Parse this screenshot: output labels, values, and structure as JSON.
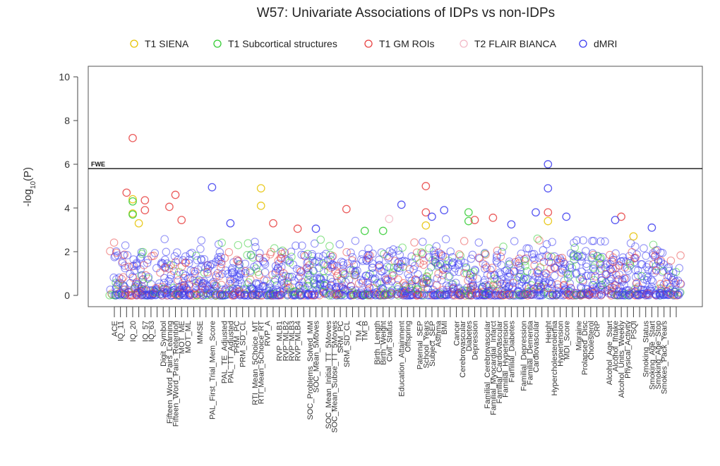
{
  "chart_data": {
    "type": "scatter",
    "title": "W57: Univariate Associations of IDPs vs non-IDPs",
    "ylabel_prefix": "-log",
    "ylabel_sub": "10",
    "ylabel_suffix": "(P)",
    "ylim": [
      0,
      10
    ],
    "yticks": [
      0,
      2,
      4,
      6,
      8,
      10
    ],
    "fwe_threshold": 5.8,
    "fwe_label": "FWE",
    "legend": [
      {
        "name": "T1 SIENA",
        "color": "#e6c200"
      },
      {
        "name": "T1 Subcortical structures",
        "color": "#33cc33"
      },
      {
        "name": "T1 GM ROIs",
        "color": "#e84040"
      },
      {
        "name": "T2 FLAIR BIANCA",
        "color": "#f2b8c6"
      },
      {
        "name": "dMRI",
        "color": "#3a3af0"
      }
    ],
    "x_count": 93,
    "x_labels": [
      {
        "i": 0,
        "label": "ACE"
      },
      {
        "i": 1,
        "label": "IQ_11"
      },
      {
        "i": 3,
        "label": "IQ_20"
      },
      {
        "i": 5,
        "label": "IQ_57"
      },
      {
        "i": 6,
        "label": "IQ_63"
      },
      {
        "i": 8,
        "label": "Digit_Symbol"
      },
      {
        "i": 9,
        "label": "Fifteen_Word_Pairs_Learning"
      },
      {
        "i": 10,
        "label": "Fifteen_Word_Pairs_Retention"
      },
      {
        "i": 11,
        "label": "MOT_ME"
      },
      {
        "i": 12,
        "label": "MOT_ML"
      },
      {
        "i": 14,
        "label": "MMSE"
      },
      {
        "i": 16,
        "label": "PAL_First_Trial_Mem_Score"
      },
      {
        "i": 18,
        "label": "PAL_TE_Adjusted"
      },
      {
        "i": 19,
        "label": "PAL_TT_Adjusted"
      },
      {
        "i": 20,
        "label": "PRM_PC"
      },
      {
        "i": 21,
        "label": "PRM_SD_CL"
      },
      {
        "i": 23,
        "label": "RTI_Mean_5Choice_MT"
      },
      {
        "i": 24,
        "label": "RTI_Mean_5Choice_RT"
      },
      {
        "i": 25,
        "label": "RVP_A"
      },
      {
        "i": 27,
        "label": "RVP_MLB1"
      },
      {
        "i": 28,
        "label": "RVP_MLB2"
      },
      {
        "i": 29,
        "label": "RVP_MLB3"
      },
      {
        "i": 30,
        "label": "RVP_MLB4"
      },
      {
        "i": 32,
        "label": "SOC_Problems_Solved_MM"
      },
      {
        "i": 33,
        "label": "SOC_Mean_5Moves"
      },
      {
        "i": 35,
        "label": "SOC_Mean_Initial_TT_5Moves"
      },
      {
        "i": 36,
        "label": "SOC_Mean_Subse_TT_5Moves"
      },
      {
        "i": 37,
        "label": "SRM_PC"
      },
      {
        "i": 38,
        "label": "SRM_SD_CL"
      },
      {
        "i": 40,
        "label": "TM_A"
      },
      {
        "i": 41,
        "label": "TM_B"
      },
      {
        "i": 43,
        "label": "Birth_Length"
      },
      {
        "i": 44,
        "label": "Birth_Weight"
      },
      {
        "i": 45,
        "label": "Civil_Status"
      },
      {
        "i": 47,
        "label": "Education_Attainment"
      },
      {
        "i": 48,
        "label": "Offspring"
      },
      {
        "i": 50,
        "label": "Paternal_SEP"
      },
      {
        "i": 51,
        "label": "School_Years"
      },
      {
        "i": 52,
        "label": "Subject_SEP"
      },
      {
        "i": 53,
        "label": "Asthma"
      },
      {
        "i": 54,
        "label": "BMI"
      },
      {
        "i": 56,
        "label": "Cancer"
      },
      {
        "i": 57,
        "label": "Cerebrovascular"
      },
      {
        "i": 58,
        "label": "Diabetes"
      },
      {
        "i": 59,
        "label": "Depression"
      },
      {
        "i": 61,
        "label": "Familial_Cerebrovascular"
      },
      {
        "i": 62,
        "label": "Familial_Myocardial_Infarct"
      },
      {
        "i": 63,
        "label": "Familial_Cardiovascular"
      },
      {
        "i": 64,
        "label": "Familial_Hypertension"
      },
      {
        "i": 65,
        "label": "Familial_Diabetes"
      },
      {
        "i": 67,
        "label": "Familial_Depression"
      },
      {
        "i": 68,
        "label": "Familial_Dementia"
      },
      {
        "i": 69,
        "label": "Cardiovascular"
      },
      {
        "i": 71,
        "label": "Height"
      },
      {
        "i": 72,
        "label": "Hypercholesterolemia"
      },
      {
        "i": 73,
        "label": "Hypertension"
      },
      {
        "i": 74,
        "label": "MDI_Score"
      },
      {
        "i": 76,
        "label": "Migraine"
      },
      {
        "i": 77,
        "label": "Prolapsed_Disc"
      },
      {
        "i": 78,
        "label": "Cholesterol"
      },
      {
        "i": 79,
        "label": "CRP"
      },
      {
        "i": 81,
        "label": "Alcohol_Age_Start"
      },
      {
        "i": 82,
        "label": "Alcohol_Intake"
      },
      {
        "i": 83,
        "label": "Alcohol_Units_Weekly"
      },
      {
        "i": 84,
        "label": "Physical_Activity"
      },
      {
        "i": 85,
        "label": "PSQI"
      },
      {
        "i": 87,
        "label": "Smoking_Status"
      },
      {
        "i": 88,
        "label": "Smoking_Age_Start"
      },
      {
        "i": 89,
        "label": "Smoking_Age_Stop"
      },
      {
        "i": 90,
        "label": "Smokes_Pack_Years"
      }
    ],
    "notable_points": [
      {
        "x": 3,
        "y": 7.2,
        "series": "T1 GM ROIs"
      },
      {
        "x": 71,
        "y": 6.0,
        "series": "dMRI"
      },
      {
        "x": 51,
        "y": 5.0,
        "series": "T1 GM ROIs"
      },
      {
        "x": 16,
        "y": 4.95,
        "series": "dMRI"
      },
      {
        "x": 24,
        "y": 4.9,
        "series": "T1 SIENA"
      },
      {
        "x": 71,
        "y": 4.9,
        "series": "dMRI"
      },
      {
        "x": 2,
        "y": 4.7,
        "series": "T1 GM ROIs"
      },
      {
        "x": 10,
        "y": 4.6,
        "series": "T1 GM ROIs"
      },
      {
        "x": 3,
        "y": 4.4,
        "series": "T1 SIENA"
      },
      {
        "x": 3,
        "y": 4.3,
        "series": "T1 Subcortical structures"
      },
      {
        "x": 5,
        "y": 4.35,
        "series": "T1 GM ROIs"
      },
      {
        "x": 24,
        "y": 4.1,
        "series": "T1 SIENA"
      },
      {
        "x": 47,
        "y": 4.15,
        "series": "dMRI"
      },
      {
        "x": 9,
        "y": 4.05,
        "series": "T1 GM ROIs"
      },
      {
        "x": 38,
        "y": 3.95,
        "series": "T1 GM ROIs"
      },
      {
        "x": 54,
        "y": 3.9,
        "series": "dMRI"
      },
      {
        "x": 5,
        "y": 3.9,
        "series": "T1 GM ROIs"
      },
      {
        "x": 51,
        "y": 3.8,
        "series": "T1 GM ROIs"
      },
      {
        "x": 58,
        "y": 3.8,
        "series": "T1 Subcortical structures"
      },
      {
        "x": 71,
        "y": 3.8,
        "series": "T1 GM ROIs"
      },
      {
        "x": 69,
        "y": 3.8,
        "series": "dMRI"
      },
      {
        "x": 3,
        "y": 3.75,
        "series": "T1 SIENA"
      },
      {
        "x": 3,
        "y": 3.7,
        "series": "T1 Subcortical structures"
      },
      {
        "x": 83,
        "y": 3.6,
        "series": "T1 GM ROIs"
      },
      {
        "x": 74,
        "y": 3.6,
        "series": "dMRI"
      },
      {
        "x": 52,
        "y": 3.6,
        "series": "dMRI"
      },
      {
        "x": 62,
        "y": 3.55,
        "series": "T1 GM ROIs"
      },
      {
        "x": 45,
        "y": 3.5,
        "series": "T2 FLAIR BIANCA"
      },
      {
        "x": 82,
        "y": 3.45,
        "series": "dMRI"
      },
      {
        "x": 58,
        "y": 3.4,
        "series": "T1 Subcortical structures"
      },
      {
        "x": 11,
        "y": 3.45,
        "series": "T1 GM ROIs"
      },
      {
        "x": 59,
        "y": 3.45,
        "series": "T1 GM ROIs"
      },
      {
        "x": 4,
        "y": 3.3,
        "series": "T1 SIENA"
      },
      {
        "x": 19,
        "y": 3.3,
        "series": "dMRI"
      },
      {
        "x": 26,
        "y": 3.3,
        "series": "T1 GM ROIs"
      },
      {
        "x": 65,
        "y": 3.25,
        "series": "dMRI"
      },
      {
        "x": 88,
        "y": 3.1,
        "series": "dMRI"
      },
      {
        "x": 30,
        "y": 3.05,
        "series": "T1 GM ROIs"
      },
      {
        "x": 33,
        "y": 3.05,
        "series": "dMRI"
      },
      {
        "x": 41,
        "y": 2.95,
        "series": "T1 Subcortical structures"
      },
      {
        "x": 44,
        "y": 2.95,
        "series": "T1 Subcortical structures"
      },
      {
        "x": 51,
        "y": 3.2,
        "series": "T1 SIENA"
      },
      {
        "x": 71,
        "y": 3.4,
        "series": "T1 SIENA"
      },
      {
        "x": 85,
        "y": 2.7,
        "series": "T1 SIENA"
      }
    ]
  }
}
